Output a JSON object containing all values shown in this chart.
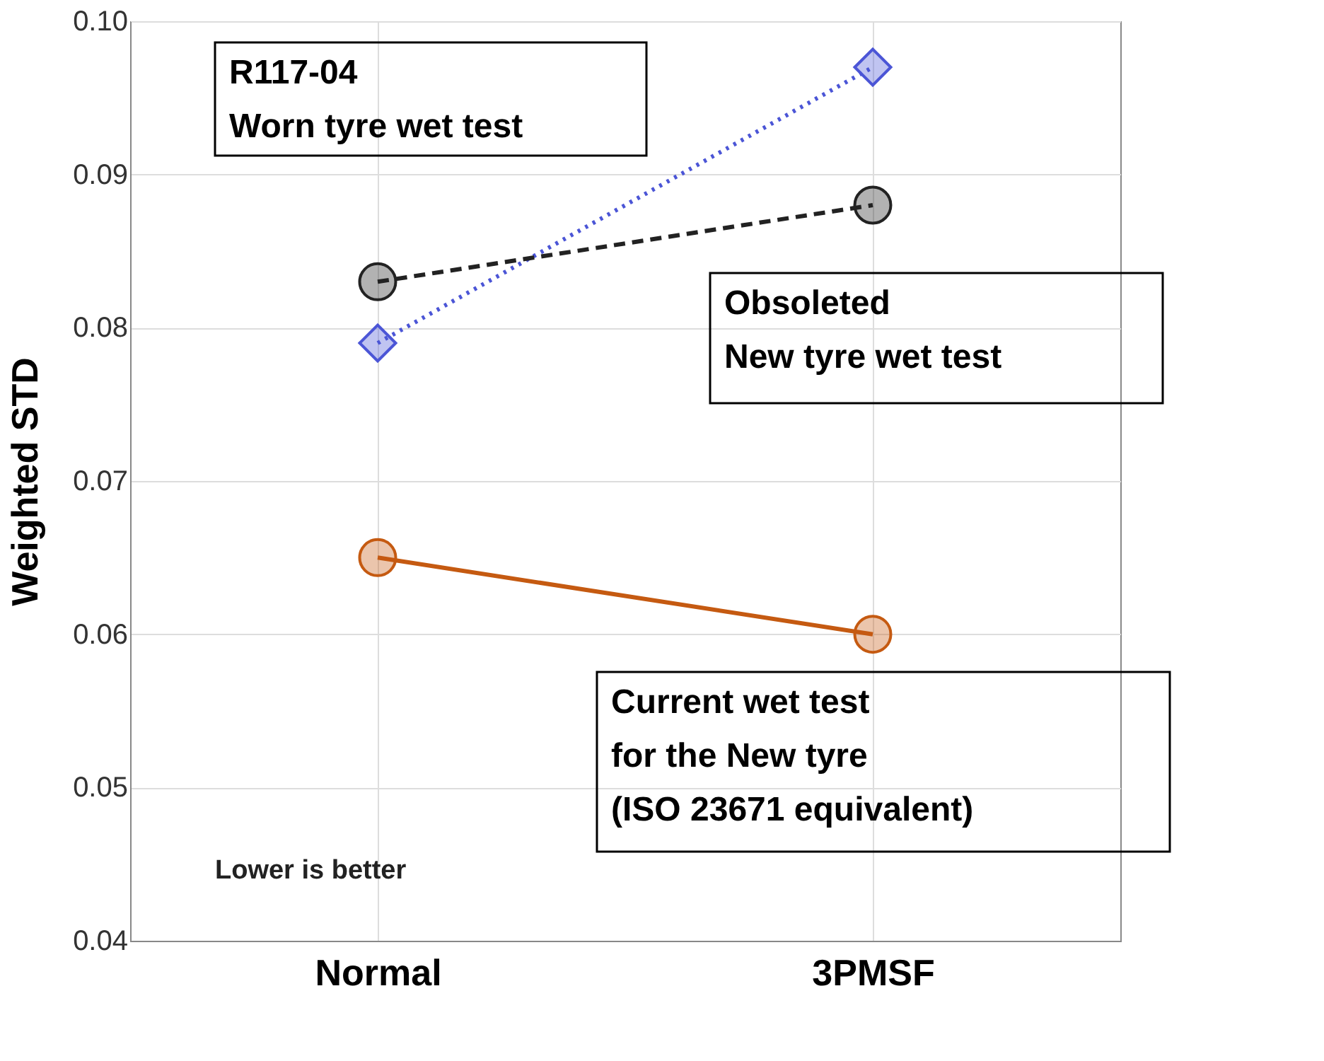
{
  "chart_data": {
    "type": "line",
    "ylabel": "Weighted STD",
    "categories": [
      "Normal",
      "3PMSF"
    ],
    "series": [
      {
        "name": "R117-04\nWorn tyre wet test",
        "color": "#4b55d6",
        "values": [
          0.079,
          0.097
        ],
        "marker": "diamond",
        "line_style": "dotted"
      },
      {
        "name": "Obsoleted\nNew tyre wet test",
        "color": "#222222",
        "values": [
          0.083,
          0.088
        ],
        "marker": "circle",
        "line_style": "dashed"
      },
      {
        "name": "Current wet test\nfor the New tyre\n(ISO 23671 equivalent)",
        "color": "#c55a11",
        "values": [
          0.065,
          0.06
        ],
        "marker": "circle",
        "line_style": "solid"
      }
    ],
    "ylim": [
      0.04,
      0.1
    ],
    "yticks": [
      0.04,
      0.05,
      0.06,
      0.07,
      0.08,
      0.09,
      {
        "value": 0.1,
        "label": "0.10"
      }
    ],
    "grid": true,
    "annotations": [
      "Lower is better"
    ]
  }
}
